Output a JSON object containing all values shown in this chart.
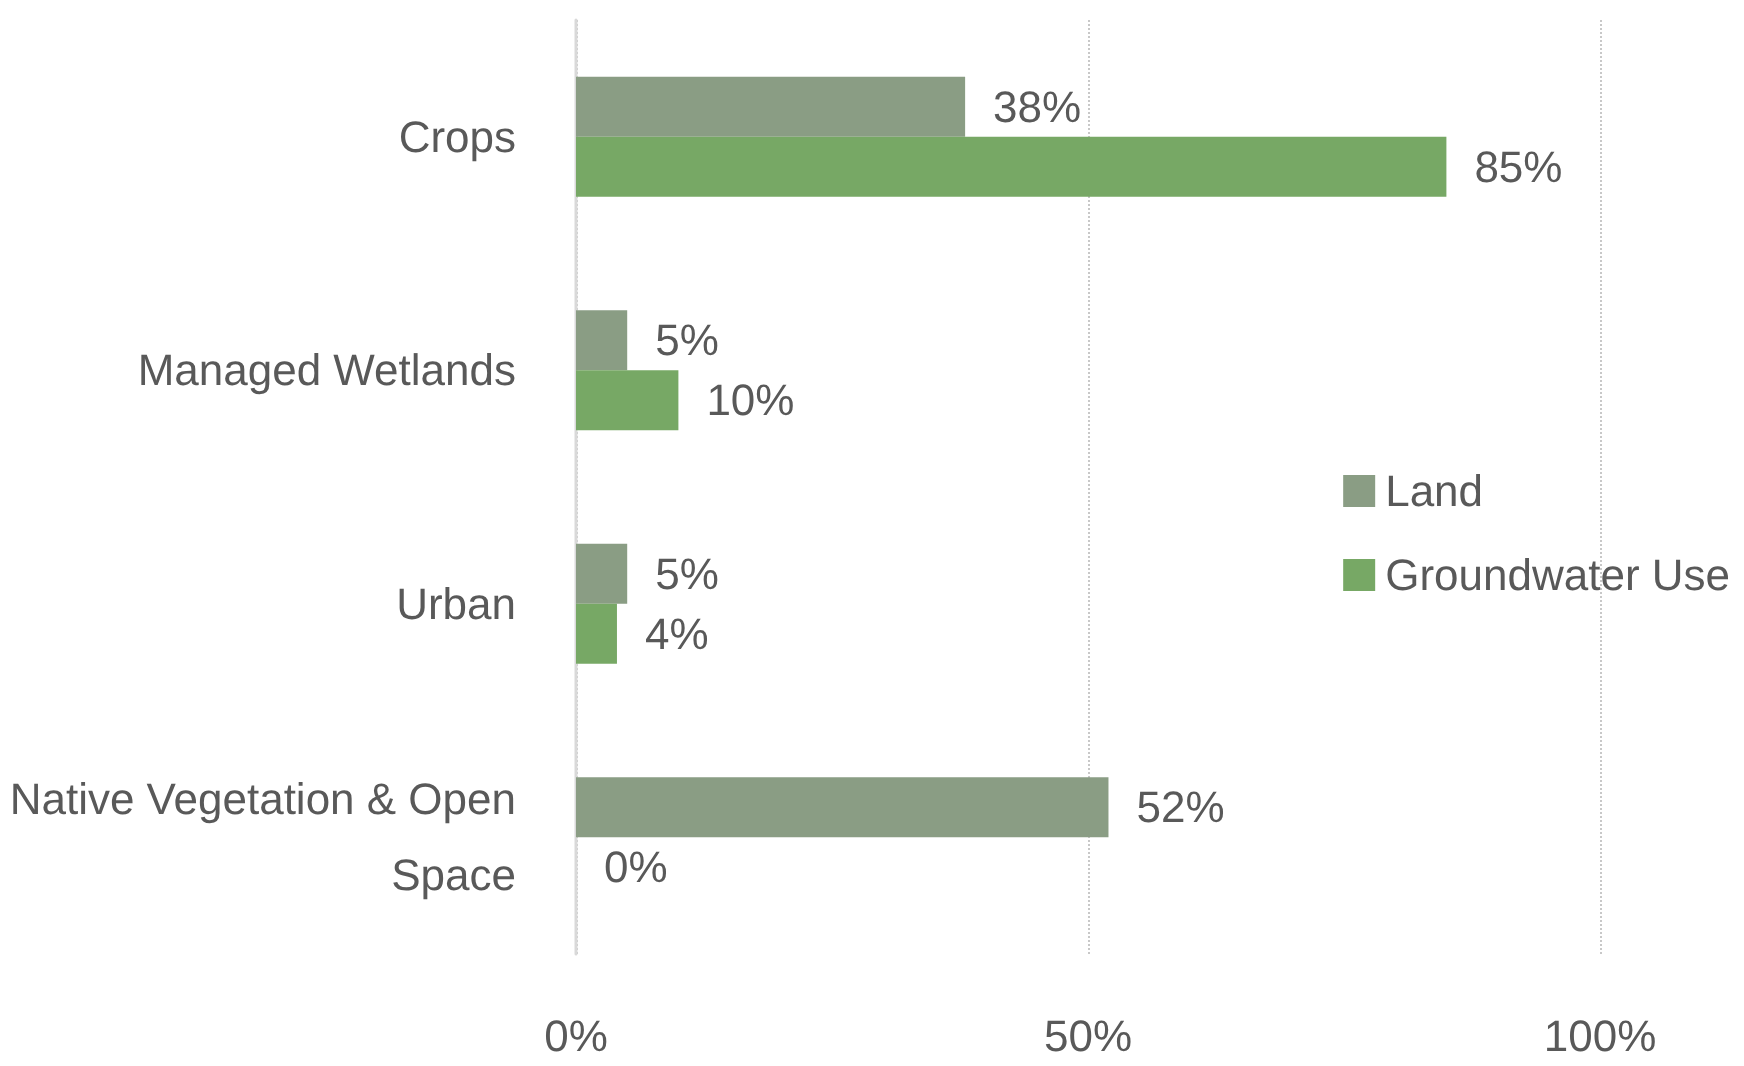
{
  "chart_data": {
    "type": "bar",
    "orientation": "horizontal",
    "categories": [
      "Crops",
      "Managed Wetlands",
      "Urban",
      "Native Vegetation & Open Space"
    ],
    "series": [
      {
        "name": "Land",
        "color": "#8a9d84",
        "values": [
          38,
          5,
          5,
          52
        ],
        "value_labels": [
          "38%",
          "5%",
          "5%",
          "52%"
        ]
      },
      {
        "name": "Groundwater Use",
        "color": "#77a865",
        "values": [
          85,
          10,
          4,
          0
        ],
        "value_labels": [
          "85%",
          "10%",
          "4%",
          "0%"
        ]
      }
    ],
    "xlim": [
      0,
      100
    ],
    "xticks": [
      {
        "value": 0,
        "label": "0%"
      },
      {
        "value": 50,
        "label": "50%"
      },
      {
        "value": 100,
        "label": "100%"
      }
    ],
    "grid": "x",
    "legend": "right"
  }
}
